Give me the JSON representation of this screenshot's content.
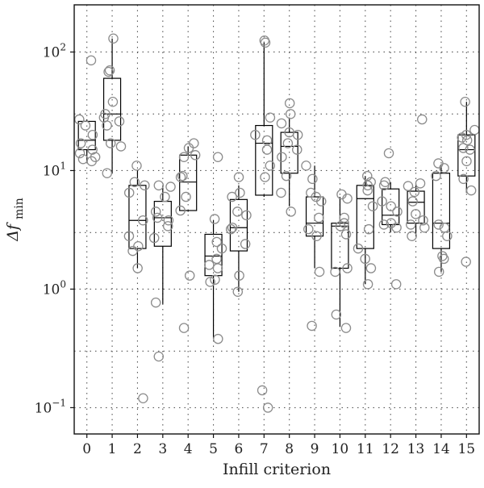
{
  "chart_data": {
    "type": "box",
    "xlabel": "Infill criterion",
    "ylabel": "Δf",
    "ylabel_subscript": "min",
    "y_scale": "log",
    "ylim": [
      0.06,
      250
    ],
    "grid": true,
    "categories": [
      "0",
      "1",
      "2",
      "3",
      "4",
      "5",
      "6",
      "7",
      "8",
      "9",
      "10",
      "11",
      "12",
      "13",
      "14",
      "15"
    ],
    "y_tick_values": [
      0.1,
      1,
      10,
      100
    ],
    "y_tick_labels": [
      {
        "base": "10",
        "exp": "−1"
      },
      {
        "base": "10",
        "exp": "0"
      },
      {
        "base": "10",
        "exp": "1"
      },
      {
        "base": "10",
        "exp": "2"
      }
    ],
    "boxes": [
      {
        "category": "0",
        "whisker_low": 12,
        "q1": 15,
        "median": 18,
        "q3": 26,
        "whisker_high": 27
      },
      {
        "category": "1",
        "whisker_low": 9.5,
        "q1": 18,
        "median": 30,
        "q3": 60,
        "whisker_high": 130
      },
      {
        "category": "2",
        "whisker_low": 1.5,
        "q1": 2.2,
        "median": 3.8,
        "q3": 7.5,
        "whisker_high": 10
      },
      {
        "category": "3",
        "whisker_low": 0.75,
        "q1": 2.3,
        "median": 4,
        "q3": 5.5,
        "whisker_high": 7.5
      },
      {
        "category": "4",
        "whisker_low": 4.5,
        "q1": 4.6,
        "median": 8,
        "q3": 13.5,
        "whisker_high": 16
      },
      {
        "category": "5",
        "whisker_low": 0.38,
        "q1": 1.3,
        "median": 1.9,
        "q3": 2.9,
        "whisker_high": 3.8
      },
      {
        "category": "6",
        "whisker_low": 0.95,
        "q1": 2.1,
        "median": 3.3,
        "q3": 5.7,
        "whisker_high": 7.5
      },
      {
        "category": "7",
        "whisker_low": 6,
        "q1": 6.2,
        "median": 17,
        "q3": 24,
        "whisker_high": 120
      },
      {
        "category": "8",
        "whisker_low": 5,
        "q1": 9.5,
        "median": 16,
        "q3": 21,
        "whisker_high": 28
      },
      {
        "category": "9",
        "whisker_low": 1.5,
        "q1": 2.8,
        "median": 3.6,
        "q3": 6,
        "whisker_high": 11
      },
      {
        "category": "10",
        "whisker_low": 0.48,
        "q1": 1.5,
        "median": 3.4,
        "q3": 3.6,
        "whisker_high": 6
      },
      {
        "category": "11",
        "whisker_low": 1.1,
        "q1": 2.2,
        "median": 5.8,
        "q3": 7.5,
        "whisker_high": 9
      },
      {
        "category": "12",
        "whisker_low": 3,
        "q1": 3.5,
        "median": 4.2,
        "q3": 7,
        "whisker_high": 8
      },
      {
        "category": "13",
        "whisker_low": 2.8,
        "q1": 3.6,
        "median": 5.4,
        "q3": 6.7,
        "whisker_high": 7.7
      },
      {
        "category": "14",
        "whisker_low": 1.4,
        "q1": 2.2,
        "median": 3.6,
        "q3": 9.5,
        "whisker_high": 11
      },
      {
        "category": "15",
        "whisker_low": 6.5,
        "q1": 9,
        "median": 15,
        "q3": 20,
        "whisker_high": 38
      }
    ],
    "points": [
      {
        "category": "0",
        "values": [
          85,
          27,
          24,
          20,
          17,
          15,
          14,
          13,
          12.5,
          12
        ]
      },
      {
        "category": "1",
        "values": [
          130,
          70,
          68,
          38,
          30,
          28,
          26,
          24,
          17,
          16,
          9.5
        ]
      },
      {
        "category": "2",
        "values": [
          11,
          8,
          7.5,
          6.5,
          3.8,
          2.8,
          2.3,
          2.1,
          1.5,
          0.12
        ]
      },
      {
        "category": "3",
        "values": [
          7.5,
          7.3,
          6,
          4.5,
          4,
          3.8,
          3.4,
          2.7,
          0.77,
          0.27
        ]
      },
      {
        "category": "4",
        "values": [
          17,
          15.5,
          13.5,
          13,
          9,
          8.8,
          6,
          4.6,
          1.3,
          0.47
        ]
      },
      {
        "category": "5",
        "values": [
          13,
          3.9,
          2.5,
          2.2,
          1.8,
          1.6,
          1.5,
          1.2,
          1.15,
          0.38
        ]
      },
      {
        "category": "6",
        "values": [
          8.8,
          6.5,
          6,
          4.5,
          4.2,
          3.3,
          3.2,
          2.4,
          1.3,
          0.95
        ]
      },
      {
        "category": "7",
        "values": [
          125,
          120,
          28,
          20,
          18,
          15,
          11,
          8.8,
          0.14,
          0.1
        ]
      },
      {
        "category": "8",
        "values": [
          37,
          30,
          25,
          21,
          20,
          17,
          15,
          13,
          9,
          6.5,
          4.5
        ]
      },
      {
        "category": "9",
        "values": [
          11,
          8.5,
          6.5,
          6,
          5.5,
          4,
          3.2,
          2.8,
          1.4,
          0.49
        ]
      },
      {
        "category": "10",
        "values": [
          6.3,
          5.8,
          4,
          3.6,
          3.4,
          2.9,
          1.5,
          1.4,
          0.61,
          0.47
        ]
      },
      {
        "category": "11",
        "values": [
          9,
          8,
          7.5,
          6.8,
          5,
          3.2,
          2.2,
          1.8,
          1.5,
          1.1
        ]
      },
      {
        "category": "12",
        "values": [
          14,
          8,
          7.5,
          5.5,
          5,
          4.5,
          3.6,
          3.5,
          3.3,
          1.1
        ]
      },
      {
        "category": "13",
        "values": [
          27,
          7.8,
          7.4,
          6.6,
          5.5,
          4.3,
          3.8,
          3.5,
          3.3,
          2.8
        ]
      },
      {
        "category": "14",
        "values": [
          11.5,
          10.5,
          9,
          3.5,
          3.3,
          2.8,
          1.9,
          1.8,
          1.4
        ]
      },
      {
        "category": "15",
        "values": [
          38,
          22,
          20,
          19,
          18,
          15.5,
          15,
          12,
          8.5,
          6.8,
          1.7
        ]
      }
    ],
    "box_color": "#000000",
    "point_color": "#8c8c8c",
    "grid_color": "#555555"
  }
}
